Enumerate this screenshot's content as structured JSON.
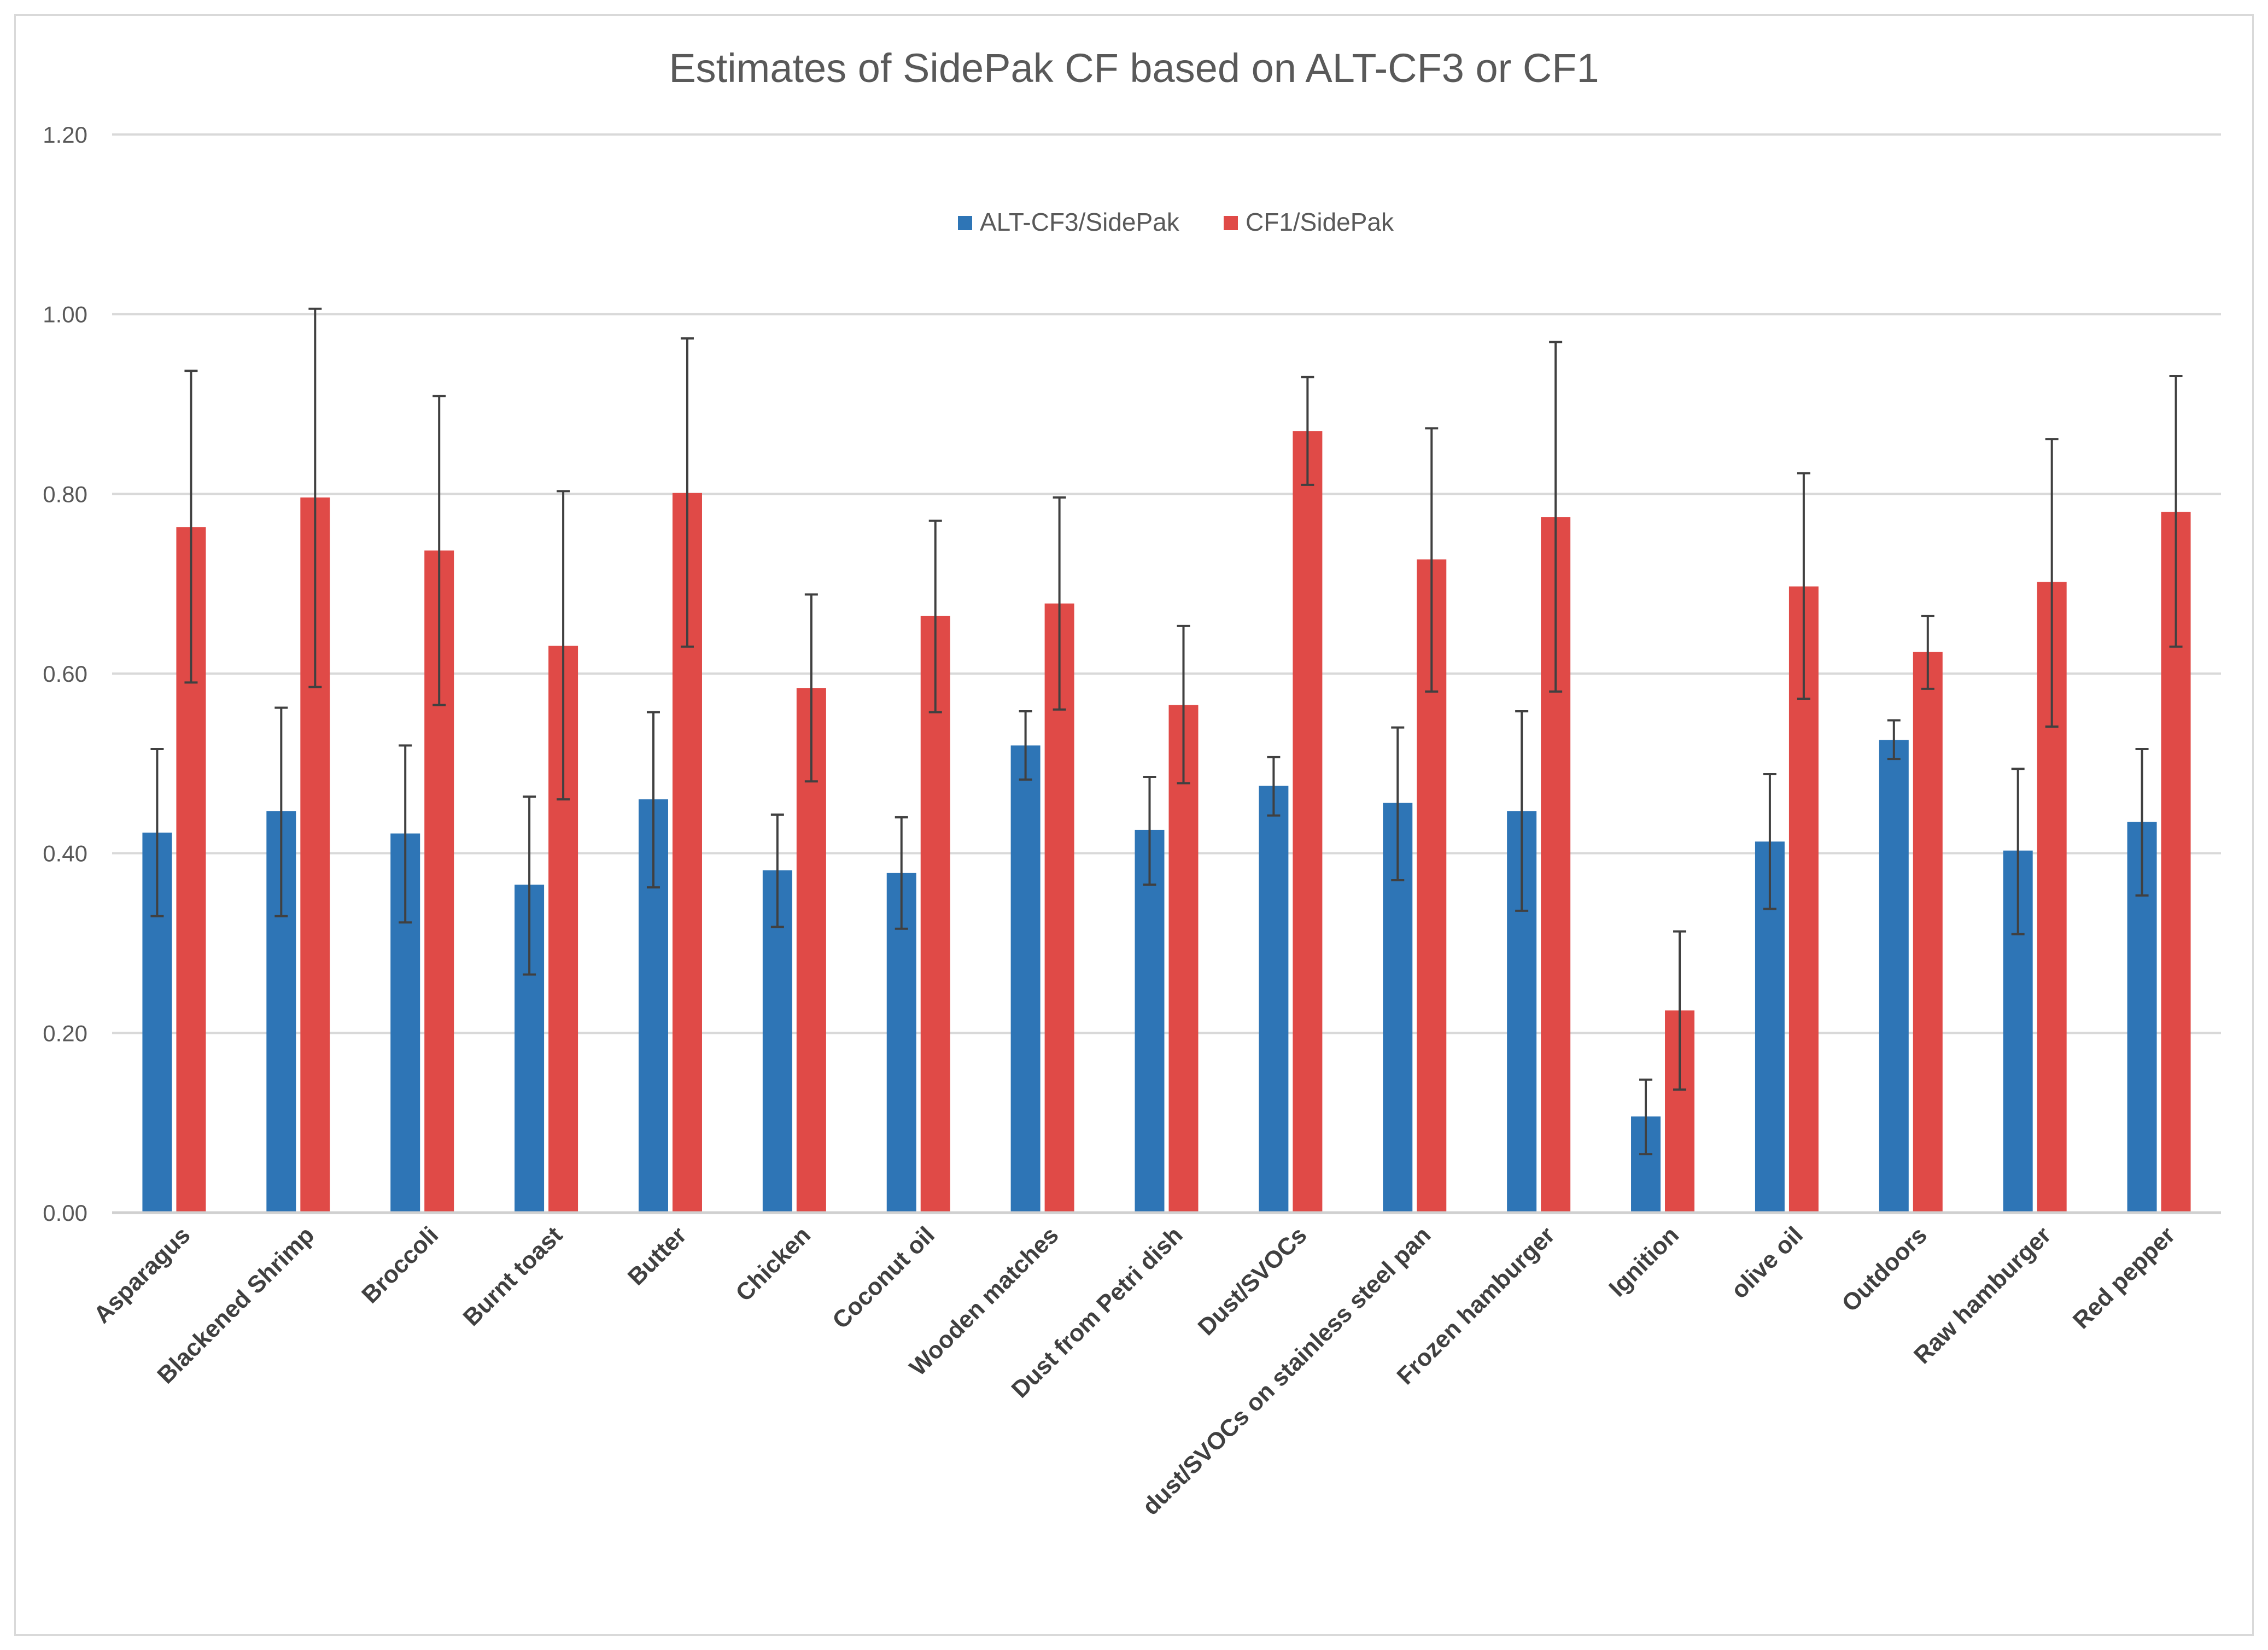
{
  "chart_data": {
    "type": "bar",
    "title": "Estimates of SidePak CF based on ALT-CF3 or CF1",
    "xlabel": "",
    "ylabel": "",
    "ylim": [
      0,
      1.2
    ],
    "yticks": [
      "0.00",
      "0.20",
      "0.40",
      "0.60",
      "0.80",
      "1.00",
      "1.20"
    ],
    "grid": true,
    "legend_position": "top-center",
    "categories": [
      "Asparagus",
      "Blackened Shrimp",
      "Broccoli",
      "Burnt toast",
      "Butter",
      "Chicken",
      "Coconut oil",
      "Wooden matches",
      "Dust from Petri dish",
      "Dust/SVOCs",
      "dust/SVOCs on stainless steel pan",
      "Frozen hamburger",
      "Ignition",
      "olive oil",
      "Outdoors",
      "Raw hamburger",
      "Red pepper"
    ],
    "series": [
      {
        "name": "ALT-CF3/SidePak",
        "color": "#2e75b6",
        "values": [
          0.423,
          0.447,
          0.422,
          0.365,
          0.46,
          0.381,
          0.378,
          0.52,
          0.426,
          0.475,
          0.456,
          0.447,
          0.107,
          0.413,
          0.526,
          0.403,
          0.435
        ],
        "err_low": [
          0.33,
          0.33,
          0.323,
          0.265,
          0.362,
          0.318,
          0.316,
          0.482,
          0.365,
          0.442,
          0.37,
          0.336,
          0.065,
          0.338,
          0.505,
          0.31,
          0.353
        ],
        "err_high": [
          0.516,
          0.562,
          0.52,
          0.463,
          0.557,
          0.443,
          0.44,
          0.558,
          0.485,
          0.507,
          0.54,
          0.558,
          0.148,
          0.488,
          0.548,
          0.494,
          0.516
        ]
      },
      {
        "name": "CF1/SidePak",
        "color": "#e04a47",
        "values": [
          0.763,
          0.796,
          0.737,
          0.631,
          0.801,
          0.584,
          0.664,
          0.678,
          0.565,
          0.87,
          0.727,
          0.774,
          0.225,
          0.697,
          0.624,
          0.702,
          0.78
        ],
        "err_low": [
          0.59,
          0.585,
          0.565,
          0.46,
          0.63,
          0.48,
          0.557,
          0.56,
          0.478,
          0.81,
          0.58,
          0.58,
          0.137,
          0.572,
          0.583,
          0.541,
          0.63
        ],
        "err_high": [
          0.937,
          1.006,
          0.909,
          0.803,
          0.973,
          0.688,
          0.77,
          0.796,
          0.653,
          0.93,
          0.873,
          0.969,
          0.313,
          0.823,
          0.664,
          0.861,
          0.931
        ]
      }
    ]
  }
}
